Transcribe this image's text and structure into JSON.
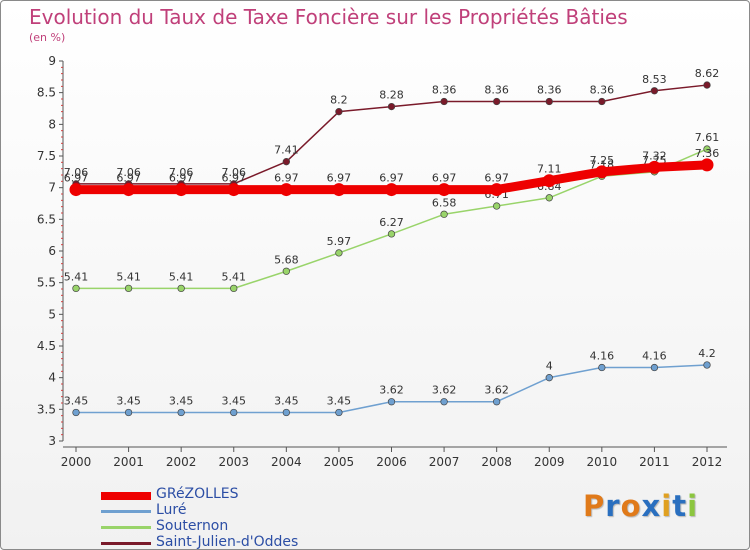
{
  "title": "Evolution du Taux de Taxe Foncière sur les Propriétés Bâties",
  "unit": "(en %)",
  "logo_text": "Proxiti",
  "chart_data": {
    "type": "line",
    "title": "Evolution du Taux de Taxe Foncière sur les Propriétés Bâties",
    "ylabel": "(en %)",
    "xlabel": "",
    "ylim": [
      3,
      9
    ],
    "yticks": [
      "3",
      "3.5",
      "4",
      "4.5",
      "5",
      "5.5",
      "6",
      "6.5",
      "7",
      "7.5",
      "8",
      "8.5",
      "9"
    ],
    "categories": [
      "2000",
      "2001",
      "2002",
      "2003",
      "2004",
      "2005",
      "2006",
      "2007",
      "2008",
      "2009",
      "2010",
      "2011",
      "2012"
    ],
    "series": [
      {
        "name": "Saint-Julien-d'Oddes",
        "color": "#7a1a2a",
        "values": [
          7.06,
          7.06,
          7.06,
          7.06,
          7.41,
          8.2,
          8.28,
          8.36,
          8.36,
          8.36,
          8.36,
          8.53,
          8.62
        ],
        "labels": [
          "7.06",
          "7.06",
          "7.06",
          "7.06",
          "7.41",
          "8.2",
          "8.28",
          "8.36",
          "8.36",
          "8.36",
          "8.36",
          "8.53",
          "8.62"
        ]
      },
      {
        "name": "Souternon",
        "color": "#99d46a",
        "values": [
          5.41,
          5.41,
          5.41,
          5.41,
          5.68,
          5.97,
          6.27,
          6.58,
          6.71,
          6.84,
          7.18,
          7.25,
          7.61
        ],
        "labels": [
          "5.41",
          "5.41",
          "5.41",
          "5.41",
          "5.68",
          "5.97",
          "6.27",
          "6.58",
          "6.71",
          "6.84",
          "7.18",
          "7.25",
          "7.61"
        ]
      },
      {
        "name": "Luré",
        "color": "#6fa0d0",
        "values": [
          3.45,
          3.45,
          3.45,
          3.45,
          3.45,
          3.45,
          3.62,
          3.62,
          3.62,
          4,
          4.16,
          4.16,
          4.2
        ],
        "labels": [
          "3.45",
          "3.45",
          "3.45",
          "3.45",
          "3.45",
          "3.45",
          "3.62",
          "3.62",
          "3.62",
          "4",
          "4.16",
          "4.16",
          "4.2"
        ]
      },
      {
        "name": "GRéZOLLES",
        "color": "#ee0000",
        "values": [
          6.97,
          6.97,
          6.97,
          6.97,
          6.97,
          6.97,
          6.97,
          6.97,
          6.97,
          7.11,
          7.25,
          7.32,
          7.36
        ],
        "labels": [
          "6.97",
          "6.97",
          "6.97",
          "6.97",
          "6.97",
          "6.97",
          "6.97",
          "6.97",
          "6.97",
          "7.11",
          "7.25",
          "7.32",
          "7.36"
        ]
      }
    ],
    "legend": [
      {
        "name": "GRéZOLLES",
        "color": "#ee0000"
      },
      {
        "name": "Luré",
        "color": "#6fa0d0"
      },
      {
        "name": "Souternon",
        "color": "#99d46a"
      },
      {
        "name": "Saint-Julien-d'Oddes",
        "color": "#7a1a2a"
      }
    ],
    "legend_position": "bottom-left",
    "grid": false
  }
}
